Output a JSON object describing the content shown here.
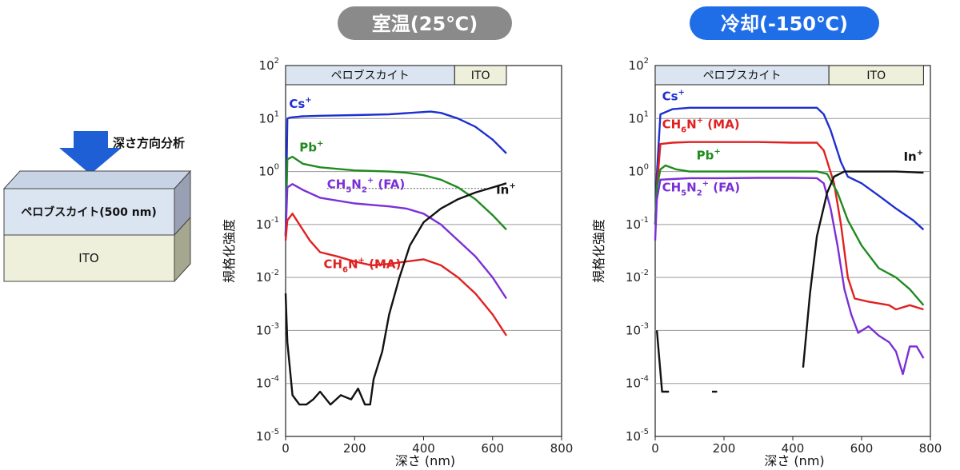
{
  "diagram": {
    "arrow_label": "深さ方向分析",
    "layer_top": "ペロブスカイト(500 nm)",
    "layer_bottom": "ITO",
    "colors": {
      "arrow": "#1f5fd6",
      "top_layer": "#dbe4f1",
      "bottom_layer": "#eef0dc"
    }
  },
  "chart_data": [
    {
      "type": "line",
      "title": "室温(25℃)",
      "title_color": "#8a8a8a",
      "xlabel": "深さ (nm)",
      "ylabel": "規格化強度",
      "xlim": [
        0,
        800
      ],
      "ylim_log10": [
        -5,
        2
      ],
      "y_scale": "log",
      "x_ticks": [
        "0",
        "200",
        "400",
        "600",
        "800"
      ],
      "y_ticks": [
        "-5",
        "-4",
        "-3",
        "-2",
        "-1",
        "0",
        "1",
        "2"
      ],
      "y_tick_base": "10",
      "grid": "horizontal",
      "region_band": [
        {
          "label": "ペロブスカイト",
          "from": 0,
          "to": 490,
          "color": "#dbe4f1"
        },
        {
          "label": "ITO",
          "from": 490,
          "to": 640,
          "color": "#eef0dc"
        }
      ],
      "reference_line": {
        "y": 0.48,
        "x_from": 120,
        "x_to": 590,
        "style": "dotted"
      },
      "series": [
        {
          "name": "Cs",
          "label": {
            "main": "Cs",
            "sup": "+"
          },
          "color": "#1f2fd0",
          "points": [
            [
              0,
              0.06
            ],
            [
              5,
              10
            ],
            [
              15,
              10.5
            ],
            [
              50,
              11
            ],
            [
              100,
              11.3
            ],
            [
              200,
              11.6
            ],
            [
              300,
              12
            ],
            [
              380,
              13
            ],
            [
              420,
              13.5
            ],
            [
              450,
              12.8
            ],
            [
              500,
              10
            ],
            [
              550,
              7
            ],
            [
              600,
              4
            ],
            [
              640,
              2.2
            ]
          ]
        },
        {
          "name": "Pb",
          "label": {
            "main": "Pb",
            "sup": "+"
          },
          "color": "#1f8a1f",
          "points": [
            [
              0,
              0.06
            ],
            [
              5,
              1.7
            ],
            [
              20,
              1.9
            ],
            [
              50,
              1.4
            ],
            [
              100,
              1.2
            ],
            [
              200,
              1.05
            ],
            [
              300,
              1.0
            ],
            [
              350,
              0.95
            ],
            [
              400,
              0.85
            ],
            [
              450,
              0.7
            ],
            [
              500,
              0.5
            ],
            [
              550,
              0.3
            ],
            [
              600,
              0.15
            ],
            [
              640,
              0.08
            ]
          ]
        },
        {
          "name": "FA",
          "label": {
            "main": "CH",
            "parts": [
              [
                "5",
                "sub"
              ],
              [
                "N",
                ""
              ],
              [
                "2",
                "sub"
              ],
              [
                "+",
                "sup"
              ]
            ],
            "tail": " (FA)"
          },
          "color": "#7a2fd6",
          "points": [
            [
              0,
              0.06
            ],
            [
              5,
              0.5
            ],
            [
              20,
              0.58
            ],
            [
              50,
              0.45
            ],
            [
              100,
              0.32
            ],
            [
              200,
              0.25
            ],
            [
              300,
              0.22
            ],
            [
              350,
              0.2
            ],
            [
              400,
              0.16
            ],
            [
              450,
              0.1
            ],
            [
              500,
              0.05
            ],
            [
              550,
              0.025
            ],
            [
              600,
              0.01
            ],
            [
              640,
              0.004
            ]
          ]
        },
        {
          "name": "MA",
          "label": {
            "main": "CH",
            "parts": [
              [
                "6",
                "sub"
              ],
              [
                "N",
                ""
              ],
              [
                "+",
                "sup"
              ]
            ],
            "tail": " (MA)"
          },
          "color": "#e02020",
          "points": [
            [
              0,
              0.05
            ],
            [
              5,
              0.12
            ],
            [
              20,
              0.16
            ],
            [
              40,
              0.1
            ],
            [
              70,
              0.05
            ],
            [
              100,
              0.03
            ],
            [
              150,
              0.025
            ],
            [
              200,
              0.02
            ],
            [
              250,
              0.017
            ],
            [
              300,
              0.018
            ],
            [
              350,
              0.02
            ],
            [
              400,
              0.022
            ],
            [
              450,
              0.017
            ],
            [
              500,
              0.01
            ],
            [
              550,
              0.005
            ],
            [
              600,
              0.002
            ],
            [
              640,
              0.0008
            ]
          ]
        },
        {
          "name": "In",
          "label": {
            "main": "In",
            "sup": "+"
          },
          "color": "#111111",
          "points": [
            [
              0,
              0.005
            ],
            [
              5,
              0.0006
            ],
            [
              20,
              6e-05
            ],
            [
              40,
              4e-05
            ],
            [
              60,
              4e-05
            ],
            [
              80,
              5e-05
            ],
            [
              100,
              7e-05
            ],
            [
              130,
              4e-05
            ],
            [
              160,
              6e-05
            ],
            [
              190,
              5e-05
            ],
            [
              210,
              8e-05
            ],
            [
              230,
              4e-05
            ],
            [
              245,
              4e-05
            ],
            [
              255,
              0.00012
            ],
            [
              280,
              0.0004
            ],
            [
              300,
              0.002
            ],
            [
              330,
              0.01
            ],
            [
              360,
              0.04
            ],
            [
              400,
              0.11
            ],
            [
              450,
              0.2
            ],
            [
              500,
              0.3
            ],
            [
              550,
              0.4
            ],
            [
              600,
              0.5
            ],
            [
              640,
              0.6
            ]
          ]
        }
      ],
      "label_positions": {
        "Cs": [
          10,
          16
        ],
        "Pb": [
          40,
          2.4
        ],
        "FA": [
          120,
          0.48
        ],
        "MA": [
          110,
          0.015
        ],
        "In": [
          610,
          0.38
        ]
      }
    },
    {
      "type": "line",
      "title": "冷却(-150℃)",
      "title_color": "#1f6ee8",
      "xlabel": "深さ (nm)",
      "ylabel": "規格化強度",
      "xlim": [
        0,
        800
      ],
      "ylim_log10": [
        -5,
        2
      ],
      "y_scale": "log",
      "x_ticks": [
        "0",
        "200",
        "400",
        "600",
        "800"
      ],
      "y_ticks": [
        "-5",
        "-4",
        "-3",
        "-2",
        "-1",
        "0",
        "1",
        "2"
      ],
      "y_tick_base": "10",
      "grid": "horizontal",
      "region_band": [
        {
          "label": "ペロブスカイト",
          "from": 0,
          "to": 505,
          "color": "#dbe4f1"
        },
        {
          "label": "ITO",
          "from": 505,
          "to": 780,
          "color": "#eef0dc"
        }
      ],
      "series": [
        {
          "name": "Cs",
          "label": {
            "main": "Cs",
            "sup": "+"
          },
          "color": "#1f2fd0",
          "points": [
            [
              0,
              0.1
            ],
            [
              5,
              0.9
            ],
            [
              15,
              12
            ],
            [
              50,
              15
            ],
            [
              100,
              16
            ],
            [
              200,
              16
            ],
            [
              300,
              16
            ],
            [
              400,
              16
            ],
            [
              470,
              16
            ],
            [
              490,
              12
            ],
            [
              510,
              6
            ],
            [
              540,
              1.5
            ],
            [
              560,
              0.8
            ],
            [
              600,
              0.6
            ],
            [
              650,
              0.35
            ],
            [
              700,
              0.2
            ],
            [
              750,
              0.12
            ],
            [
              780,
              0.08
            ]
          ]
        },
        {
          "name": "MA",
          "label": {
            "main": "CH",
            "parts": [
              [
                "6",
                "sub"
              ],
              [
                "N",
                ""
              ],
              [
                "+",
                "sup"
              ]
            ],
            "tail": " (MA)"
          },
          "color": "#e02020",
          "points": [
            [
              0,
              0.1
            ],
            [
              5,
              0.5
            ],
            [
              15,
              3.3
            ],
            [
              50,
              3.5
            ],
            [
              100,
              3.6
            ],
            [
              200,
              3.6
            ],
            [
              300,
              3.6
            ],
            [
              400,
              3.5
            ],
            [
              470,
              3.5
            ],
            [
              490,
              2.5
            ],
            [
              520,
              0.6
            ],
            [
              540,
              0.1
            ],
            [
              560,
              0.01
            ],
            [
              580,
              0.004
            ],
            [
              620,
              0.0035
            ],
            [
              680,
              0.003
            ],
            [
              700,
              0.0025
            ],
            [
              740,
              0.003
            ],
            [
              780,
              0.0025
            ]
          ]
        },
        {
          "name": "Pb",
          "label": {
            "main": "Pb",
            "sup": "+"
          },
          "color": "#1f8a1f",
          "points": [
            [
              0,
              0.1
            ],
            [
              5,
              0.5
            ],
            [
              15,
              1.1
            ],
            [
              30,
              1.3
            ],
            [
              60,
              1.1
            ],
            [
              100,
              1.0
            ],
            [
              200,
              1.0
            ],
            [
              300,
              1.0
            ],
            [
              400,
              1.0
            ],
            [
              470,
              1.0
            ],
            [
              500,
              0.9
            ],
            [
              530,
              0.4
            ],
            [
              560,
              0.12
            ],
            [
              600,
              0.04
            ],
            [
              650,
              0.015
            ],
            [
              700,
              0.01
            ],
            [
              740,
              0.006
            ],
            [
              780,
              0.003
            ]
          ]
        },
        {
          "name": "FA",
          "label": {
            "main": "CH",
            "parts": [
              [
                "5",
                "sub"
              ],
              [
                "N",
                ""
              ],
              [
                "2",
                "sub"
              ],
              [
                "+",
                "sup"
              ]
            ],
            "tail": " (FA)"
          },
          "color": "#7a2fd6",
          "points": [
            [
              0,
              0.05
            ],
            [
              5,
              0.3
            ],
            [
              15,
              0.7
            ],
            [
              50,
              0.72
            ],
            [
              100,
              0.75
            ],
            [
              200,
              0.75
            ],
            [
              300,
              0.76
            ],
            [
              400,
              0.76
            ],
            [
              470,
              0.75
            ],
            [
              490,
              0.6
            ],
            [
              510,
              0.2
            ],
            [
              530,
              0.04
            ],
            [
              550,
              0.006
            ],
            [
              570,
              0.002
            ],
            [
              590,
              0.0009
            ],
            [
              620,
              0.0012
            ],
            [
              650,
              0.0008
            ],
            [
              680,
              0.0006
            ],
            [
              700,
              0.0004
            ],
            [
              720,
              0.00015
            ],
            [
              740,
              0.0005
            ],
            [
              760,
              0.0005
            ],
            [
              780,
              0.0003
            ]
          ]
        },
        {
          "name": "In",
          "label": {
            "main": "In",
            "sup": "+"
          },
          "color": "#111111",
          "points": [
            [
              430,
              0.0002
            ],
            [
              450,
              0.005
            ],
            [
              470,
              0.06
            ],
            [
              500,
              0.4
            ],
            [
              520,
              0.8
            ],
            [
              550,
              1.0
            ],
            [
              600,
              1.0
            ],
            [
              650,
              1.0
            ],
            [
              700,
              1.0
            ],
            [
              780,
              0.95
            ]
          ]
        },
        {
          "name": "In-early",
          "color": "#111111",
          "points": [
            [
              5,
              0.001
            ],
            [
              20,
              7e-05
            ],
            [
              40,
              7e-05
            ]
          ]
        },
        {
          "name": "In-dash",
          "color": "#111111",
          "points": [
            [
              165,
              7e-05
            ],
            [
              180,
              7e-05
            ]
          ]
        }
      ],
      "label_positions": {
        "Cs": [
          20,
          22
        ],
        "MA": [
          20,
          6.5
        ],
        "Pb": [
          120,
          1.7
        ],
        "FA": [
          20,
          0.42
        ],
        "In": [
          722,
          1.6
        ]
      }
    }
  ]
}
